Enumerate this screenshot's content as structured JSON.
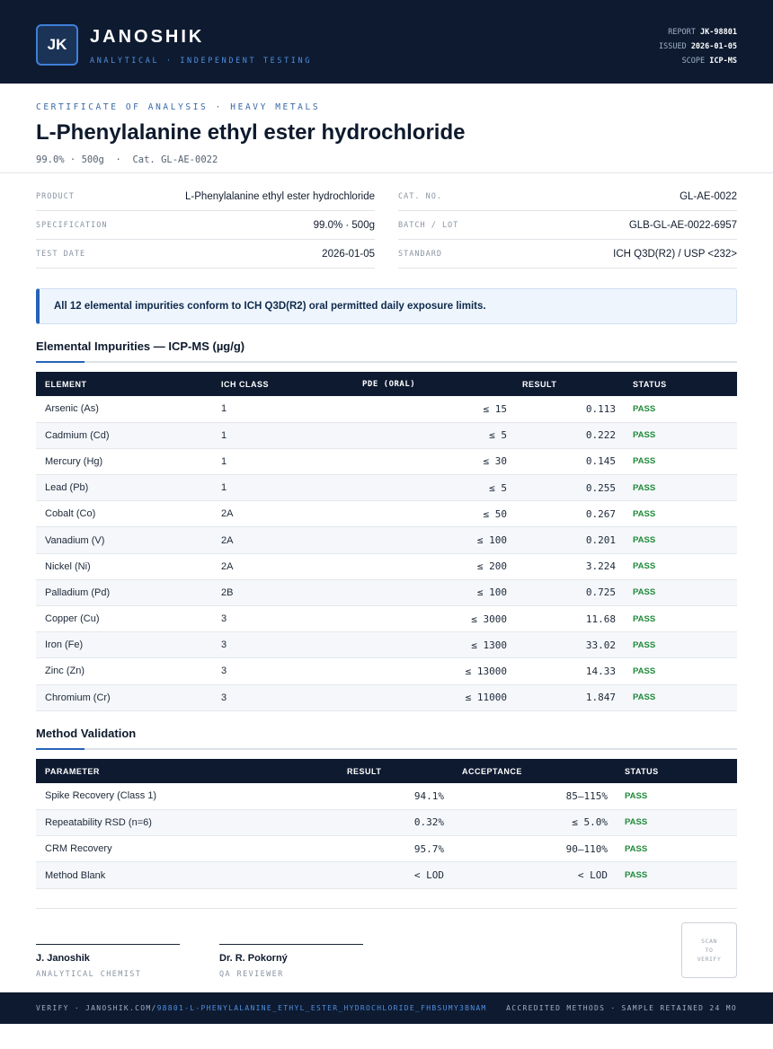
{
  "header": {
    "logo_initials": "JK",
    "brand": "JANOSHIK",
    "brand_sub": "ANALYTICAL · INDEPENDENT TESTING",
    "report_label": "REPORT",
    "report_value": "JK-98801",
    "issued_label": "ISSUED",
    "issued_value": "2026-01-05",
    "scope_label": "SCOPE",
    "scope_value": "ICP-MS"
  },
  "title": {
    "kicker": "CERTIFICATE OF ANALYSIS · HEAVY METALS",
    "product_name": "L-Phenylalanine ethyl ester hydrochloride",
    "subtitle": "99.0% · 500g  ·  Cat. GL-AE-0022"
  },
  "info": {
    "left": [
      {
        "label": "PRODUCT",
        "value": "L-Phenylalanine ethyl ester hydrochloride"
      },
      {
        "label": "SPECIFICATION",
        "value": "99.0% · 500g"
      },
      {
        "label": "TEST DATE",
        "value": "2026-01-05"
      }
    ],
    "right": [
      {
        "label": "CAT. NO.",
        "value": "GL-AE-0022"
      },
      {
        "label": "BATCH / LOT",
        "value": "GLB-GL-AE-0022-6957"
      },
      {
        "label": "STANDARD",
        "value": "ICH Q3D(R2) / USP <232>"
      }
    ]
  },
  "notice": "All 12 elemental impurities conform to ICH Q3D(R2) oral permitted daily exposure limits.",
  "impurities": {
    "heading": "Elemental Impurities — ICP-MS (µg/g)",
    "columns": [
      "ELEMENT",
      "ICH CLASS",
      "PDE (ORAL)",
      "RESULT",
      "STATUS"
    ],
    "rows": [
      {
        "element": "Arsenic (As)",
        "class": "1",
        "pde": "≤ 15",
        "result": "0.113",
        "status": "PASS"
      },
      {
        "element": "Cadmium (Cd)",
        "class": "1",
        "pde": "≤ 5",
        "result": "0.222",
        "status": "PASS"
      },
      {
        "element": "Mercury (Hg)",
        "class": "1",
        "pde": "≤ 30",
        "result": "0.145",
        "status": "PASS"
      },
      {
        "element": "Lead (Pb)",
        "class": "1",
        "pde": "≤ 5",
        "result": "0.255",
        "status": "PASS"
      },
      {
        "element": "Cobalt (Co)",
        "class": "2A",
        "pde": "≤ 50",
        "result": "0.267",
        "status": "PASS"
      },
      {
        "element": "Vanadium (V)",
        "class": "2A",
        "pde": "≤ 100",
        "result": "0.201",
        "status": "PASS"
      },
      {
        "element": "Nickel (Ni)",
        "class": "2A",
        "pde": "≤ 200",
        "result": "3.224",
        "status": "PASS"
      },
      {
        "element": "Palladium (Pd)",
        "class": "2B",
        "pde": "≤ 100",
        "result": "0.725",
        "status": "PASS"
      },
      {
        "element": "Copper (Cu)",
        "class": "3",
        "pde": "≤ 3000",
        "result": "11.68",
        "status": "PASS"
      },
      {
        "element": "Iron (Fe)",
        "class": "3",
        "pde": "≤ 1300",
        "result": "33.02",
        "status": "PASS"
      },
      {
        "element": "Zinc (Zn)",
        "class": "3",
        "pde": "≤ 13000",
        "result": "14.33",
        "status": "PASS"
      },
      {
        "element": "Chromium (Cr)",
        "class": "3",
        "pde": "≤ 11000",
        "result": "1.847",
        "status": "PASS"
      }
    ]
  },
  "validation": {
    "heading": "Method Validation",
    "columns": [
      "PARAMETER",
      "RESULT",
      "ACCEPTANCE",
      "STATUS"
    ],
    "rows": [
      {
        "parameter": "Spike Recovery (Class 1)",
        "result": "94.1%",
        "acceptance": "85–115%",
        "status": "PASS"
      },
      {
        "parameter": "Repeatability RSD (n=6)",
        "result": "0.32%",
        "acceptance": "≤ 5.0%",
        "status": "PASS"
      },
      {
        "parameter": "CRM Recovery",
        "result": "95.7%",
        "acceptance": "90–110%",
        "status": "PASS"
      },
      {
        "parameter": "Method Blank",
        "result": "< LOD",
        "acceptance": "< LOD",
        "status": "PASS"
      }
    ]
  },
  "signatures": [
    {
      "name": "J. Janoshik",
      "role": "ANALYTICAL CHEMIST"
    },
    {
      "name": "Dr. R. Pokorný",
      "role": "QA REVIEWER"
    }
  ],
  "qr": {
    "line1": "SCAN",
    "line2": "TO",
    "line3": "VERIFY"
  },
  "footer": {
    "verify_prefix": "VERIFY · JANOSHIK.COM/",
    "verify_path": "98801-L-PHENYLALANINE_ETHYL_ESTER_HYDROCHLORIDE_FHBSUMY3BNAM",
    "right": "ACCREDITED METHODS · SAMPLE RETAINED 24 MO"
  },
  "colors": {
    "navy": "#0e1a30",
    "accent_blue": "#2563b8",
    "pass_green": "#1f8a3a"
  }
}
